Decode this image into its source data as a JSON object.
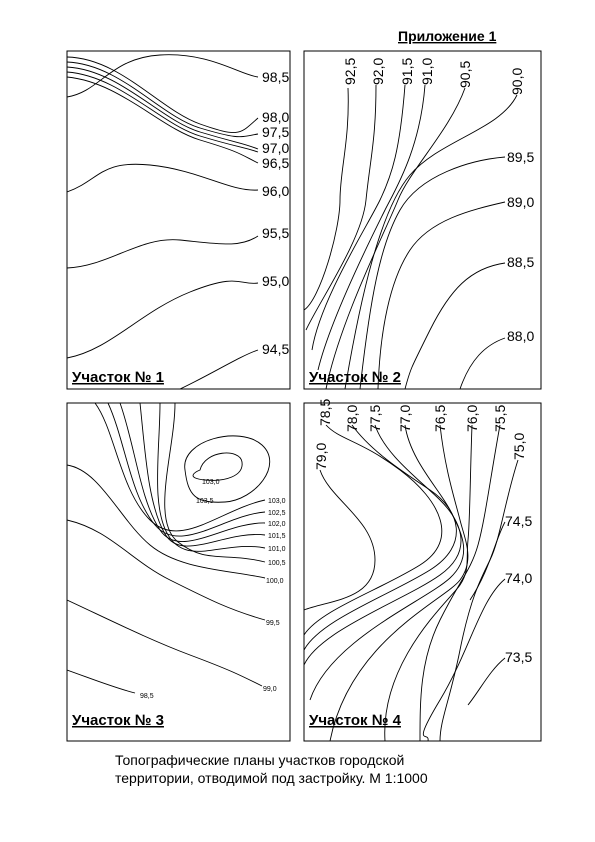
{
  "header": {
    "title": "Приложение 1"
  },
  "panels": [
    {
      "label": "Участок № 1",
      "contour_labels": [
        "98,5",
        "98,0",
        "97,5",
        "97,0",
        "96,5",
        "96,0",
        "95,5",
        "95,0",
        "94,5"
      ]
    },
    {
      "label": "Участок № 2",
      "contour_labels": [
        "92,5",
        "92,0",
        "91,5",
        "91,0",
        "90,5",
        "90,0",
        "89,5",
        "89,0",
        "88,5",
        "88,0"
      ]
    },
    {
      "label": "Участок № 3",
      "contour_labels": [
        "103,0",
        "103,5",
        "103,0",
        "102,5",
        "102,0",
        "101,5",
        "101,0",
        "100,5",
        "100,0",
        "99,5",
        "99,0",
        "98,5"
      ]
    },
    {
      "label": "Участок № 4",
      "contour_labels": [
        "79,0",
        "78,5",
        "78,0",
        "77,5",
        "77,0",
        "76,5",
        "76,0",
        "75,5",
        "75,0",
        "74,5",
        "74,0",
        "73,5"
      ]
    }
  ],
  "caption": [
    "Топографические планы участков городской",
    "территории, отводимой под застройку. М 1:1000"
  ]
}
